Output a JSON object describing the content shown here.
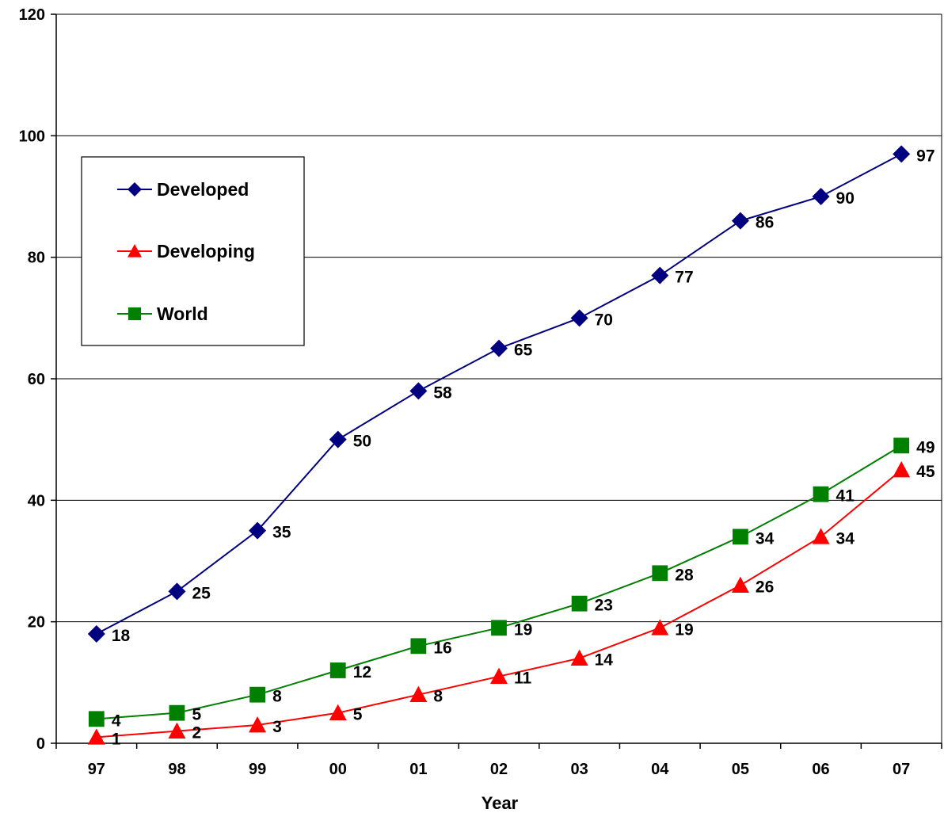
{
  "chart_data": {
    "type": "line",
    "title": "",
    "xlabel": "Year",
    "ylabel": "",
    "categories": [
      "97",
      "98",
      "99",
      "00",
      "01",
      "02",
      "03",
      "04",
      "05",
      "06",
      "07"
    ],
    "ylim": [
      0,
      120
    ],
    "yticks": [
      0,
      20,
      40,
      60,
      80,
      100,
      120
    ],
    "grid": "horizontal",
    "legend_position": "upper-left",
    "series": [
      {
        "name": "Developed",
        "color": "#000080",
        "marker": "diamond",
        "values": [
          18,
          25,
          35,
          50,
          58,
          65,
          70,
          77,
          86,
          90,
          97
        ]
      },
      {
        "name": "Developing",
        "color": "#ff0000",
        "marker": "triangle",
        "values": [
          1,
          2,
          3,
          5,
          8,
          11,
          14,
          19,
          26,
          34,
          45
        ]
      },
      {
        "name": "World",
        "color": "#008000",
        "marker": "square",
        "values": [
          4,
          5,
          8,
          12,
          16,
          19,
          23,
          28,
          34,
          41,
          49
        ]
      }
    ]
  }
}
